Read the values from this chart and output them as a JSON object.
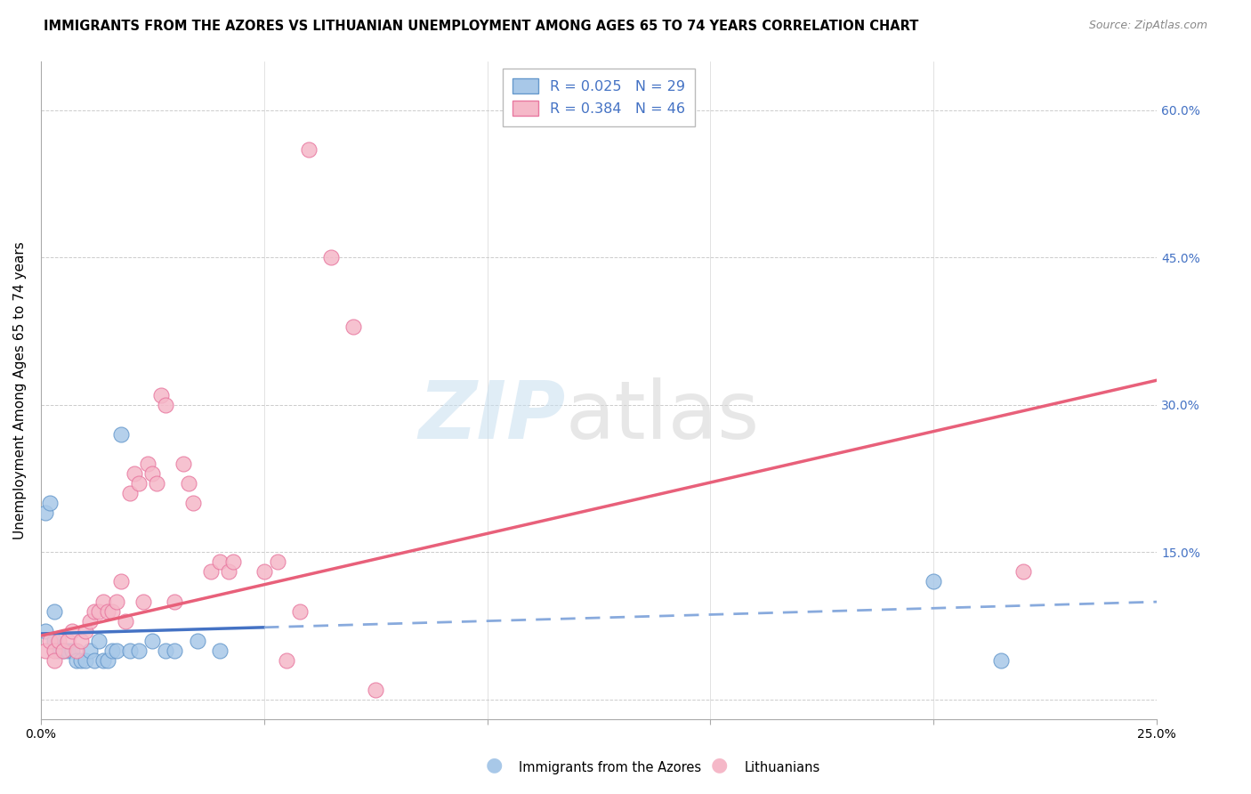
{
  "title": "IMMIGRANTS FROM THE AZORES VS LITHUANIAN UNEMPLOYMENT AMONG AGES 65 TO 74 YEARS CORRELATION CHART",
  "source": "Source: ZipAtlas.com",
  "ylabel": "Unemployment Among Ages 65 to 74 years",
  "xlim": [
    0,
    0.25
  ],
  "ylim": [
    -0.02,
    0.65
  ],
  "xticks": [
    0.0,
    0.05,
    0.1,
    0.15,
    0.2,
    0.25
  ],
  "yticks": [
    0.0,
    0.15,
    0.3,
    0.45,
    0.6
  ],
  "right_yticklabels": [
    "",
    "15.0%",
    "30.0%",
    "45.0%",
    "60.0%"
  ],
  "bottom_legend1": "Immigrants from the Azores",
  "bottom_legend2": "Lithuanians",
  "azores_color": "#a8c8e8",
  "azores_edge_color": "#6699cc",
  "lit_color": "#f5b8c8",
  "lit_edge_color": "#e878a0",
  "blue_line_color": "#4472c4",
  "pink_line_color": "#e8607a",
  "blue_dash_color": "#88aadd",
  "right_tick_color": "#4472c4",
  "title_fontsize": 10.5,
  "azores_x": [
    0.001,
    0.002,
    0.003,
    0.001,
    0.003,
    0.004,
    0.005,
    0.006,
    0.007,
    0.008,
    0.009,
    0.01,
    0.011,
    0.012,
    0.013,
    0.014,
    0.015,
    0.016,
    0.017,
    0.018,
    0.02,
    0.022,
    0.025,
    0.028,
    0.03,
    0.035,
    0.04,
    0.2,
    0.215
  ],
  "azores_y": [
    0.19,
    0.2,
    0.09,
    0.07,
    0.06,
    0.05,
    0.05,
    0.05,
    0.05,
    0.04,
    0.04,
    0.04,
    0.05,
    0.04,
    0.06,
    0.04,
    0.04,
    0.05,
    0.05,
    0.27,
    0.05,
    0.05,
    0.06,
    0.05,
    0.05,
    0.06,
    0.05,
    0.12,
    0.04
  ],
  "lit_x": [
    0.001,
    0.002,
    0.003,
    0.003,
    0.004,
    0.005,
    0.006,
    0.007,
    0.008,
    0.009,
    0.01,
    0.011,
    0.012,
    0.013,
    0.014,
    0.015,
    0.016,
    0.017,
    0.018,
    0.019,
    0.02,
    0.021,
    0.022,
    0.023,
    0.024,
    0.025,
    0.026,
    0.027,
    0.028,
    0.03,
    0.032,
    0.033,
    0.034,
    0.038,
    0.04,
    0.042,
    0.043,
    0.05,
    0.053,
    0.055,
    0.058,
    0.06,
    0.065,
    0.07,
    0.075,
    0.22
  ],
  "lit_y": [
    0.05,
    0.06,
    0.05,
    0.04,
    0.06,
    0.05,
    0.06,
    0.07,
    0.05,
    0.06,
    0.07,
    0.08,
    0.09,
    0.09,
    0.1,
    0.09,
    0.09,
    0.1,
    0.12,
    0.08,
    0.21,
    0.23,
    0.22,
    0.1,
    0.24,
    0.23,
    0.22,
    0.31,
    0.3,
    0.1,
    0.24,
    0.22,
    0.2,
    0.13,
    0.14,
    0.13,
    0.14,
    0.13,
    0.14,
    0.04,
    0.09,
    0.56,
    0.45,
    0.38,
    0.01,
    0.13
  ],
  "az_line_slope": 0.12,
  "az_line_intercept": 0.065,
  "lit_line_slope": 1.1,
  "lit_line_intercept": 0.065
}
